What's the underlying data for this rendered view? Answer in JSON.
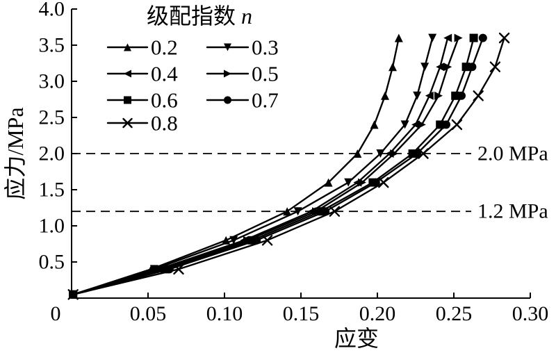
{
  "figure": {
    "background": "#ffffff",
    "ink": "#000000"
  },
  "chart_data": {
    "type": "line",
    "title": "",
    "xlabel": "应变",
    "ylabel": "应力/MPa",
    "xlim": [
      0,
      0.3
    ],
    "ylim": [
      0,
      4.0
    ],
    "grid": false,
    "legend_position": "top-left-inside",
    "legend_title": "级配指数",
    "legend_title_var": "n",
    "xticks": {
      "values": [
        0,
        0.05,
        0.1,
        0.15,
        0.2,
        0.25,
        0.3
      ],
      "labels": [
        "0",
        "0.05",
        "0.10",
        "0.15",
        "0.20",
        "0.25",
        "0.30"
      ]
    },
    "yticks": {
      "values": [
        0.5,
        1.0,
        1.5,
        2.0,
        2.5,
        3.0,
        3.5,
        4.0
      ],
      "labels": [
        "0.5",
        "1.0",
        "1.5",
        "2.0",
        "2.5",
        "3.0",
        "3.5",
        "4.0"
      ]
    },
    "reference_lines": [
      {
        "value": 2.0,
        "label": "2.0 MPa"
      },
      {
        "value": 1.2,
        "label": "1.2 MPa"
      }
    ],
    "stress_levels_mpa": [
      0.05,
      0.4,
      0.8,
      1.2,
      1.6,
      2.0,
      2.4,
      2.8,
      3.2,
      3.6
    ],
    "series": [
      {
        "name": "0.2",
        "marker": "triangle-up",
        "strain": [
          0.001,
          0.052,
          0.101,
          0.141,
          0.168,
          0.187,
          0.198,
          0.205,
          0.21,
          0.214
        ]
      },
      {
        "name": "0.3",
        "marker": "triangle-down",
        "strain": [
          0.001,
          0.054,
          0.106,
          0.148,
          0.181,
          0.202,
          0.218,
          0.226,
          0.231,
          0.236
        ]
      },
      {
        "name": "0.4",
        "marker": "triangle-left",
        "strain": [
          0.001,
          0.057,
          0.113,
          0.157,
          0.187,
          0.208,
          0.225,
          0.234,
          0.241,
          0.246
        ]
      },
      {
        "name": "0.5",
        "marker": "triangle-right",
        "strain": [
          0.001,
          0.059,
          0.115,
          0.16,
          0.19,
          0.211,
          0.229,
          0.24,
          0.246,
          0.253
        ]
      },
      {
        "name": "0.6",
        "marker": "square",
        "strain": [
          0.001,
          0.061,
          0.118,
          0.163,
          0.197,
          0.223,
          0.241,
          0.251,
          0.258,
          0.263
        ]
      },
      {
        "name": "0.7",
        "marker": "circle",
        "strain": [
          0.001,
          0.064,
          0.121,
          0.166,
          0.199,
          0.226,
          0.245,
          0.255,
          0.262,
          0.269
        ]
      },
      {
        "name": "0.8",
        "marker": "x",
        "strain": [
          0.001,
          0.07,
          0.128,
          0.172,
          0.204,
          0.23,
          0.252,
          0.266,
          0.277,
          0.283
        ]
      }
    ]
  }
}
